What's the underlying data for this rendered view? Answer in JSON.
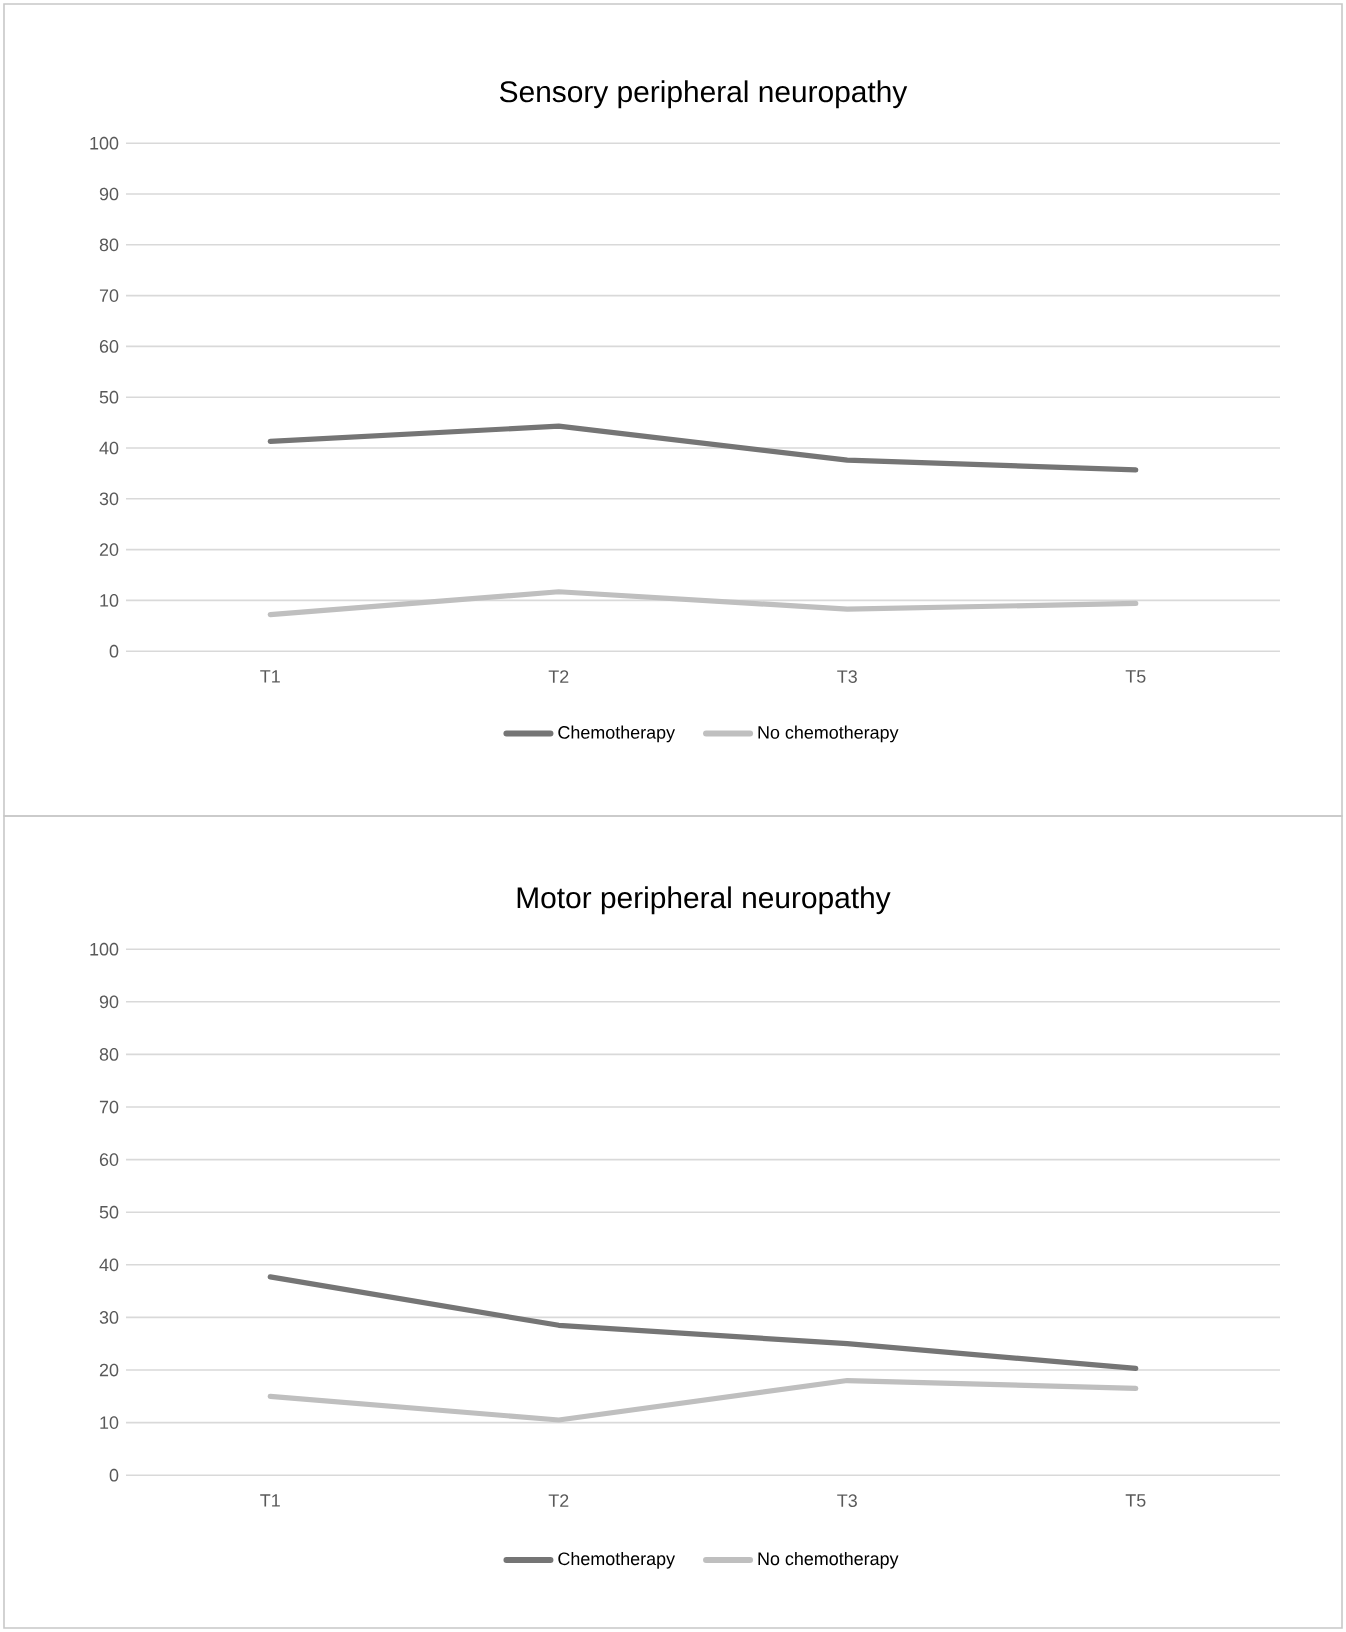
{
  "chart_data": [
    {
      "type": "line",
      "title": "Sensory peripheral neuropathy",
      "categories": [
        "T1",
        "T2",
        "T3",
        "T5"
      ],
      "series": [
        {
          "name": "Chemotherapy",
          "color": "#757575",
          "values": [
            41.3,
            44.3,
            37.6,
            35.7
          ]
        },
        {
          "name": "No chemotherapy",
          "color": "#bfbfbf",
          "values": [
            7.2,
            11.7,
            8.3,
            9.4
          ]
        }
      ],
      "ylim": [
        0,
        100
      ],
      "yticks": [
        0,
        10,
        20,
        30,
        40,
        50,
        60,
        70,
        80,
        90,
        100
      ],
      "grid": "y",
      "legend": "bottom"
    },
    {
      "type": "line",
      "title": "Motor peripheral neuropathy",
      "categories": [
        "T1",
        "T2",
        "T3",
        "T5"
      ],
      "series": [
        {
          "name": "Chemotherapy",
          "color": "#757575",
          "values": [
            37.7,
            28.5,
            25.0,
            20.3
          ]
        },
        {
          "name": "No chemotherapy",
          "color": "#bfbfbf",
          "values": [
            15.0,
            10.5,
            18.0,
            16.5
          ]
        }
      ],
      "ylim": [
        0,
        100
      ],
      "yticks": [
        0,
        10,
        20,
        30,
        40,
        50,
        60,
        70,
        80,
        90,
        100
      ],
      "grid": "y",
      "legend": "bottom"
    }
  ]
}
